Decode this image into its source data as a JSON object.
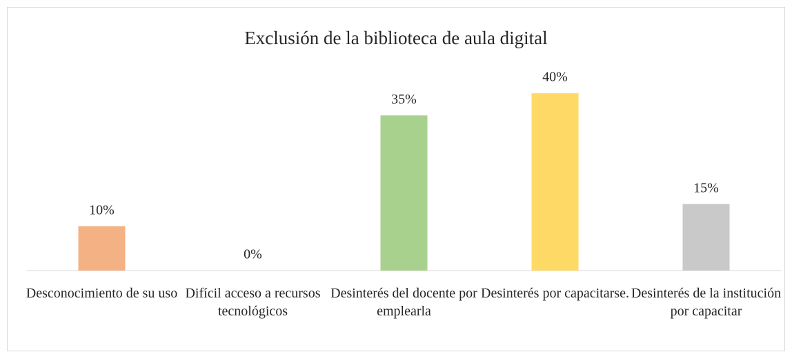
{
  "chart_data": {
    "type": "bar",
    "title": "Exclusión de la biblioteca de aula digital",
    "categories": [
      "Desconocimiento de su uso",
      "Difícil acceso a recursos tecnológicos",
      "Desinterés del docente por emplearla",
      "Desinterés por capacitarse.",
      "Desinterés de la institución por capacitar"
    ],
    "values": [
      10,
      0,
      35,
      40,
      15
    ],
    "value_labels": [
      "10%",
      "0%",
      "35%",
      "40%",
      "15%"
    ],
    "colors": [
      "#f4b183",
      "#9dc3e6",
      "#a9d18e",
      "#ffd966",
      "#c9c9c9"
    ],
    "ylim": [
      0,
      45
    ]
  }
}
